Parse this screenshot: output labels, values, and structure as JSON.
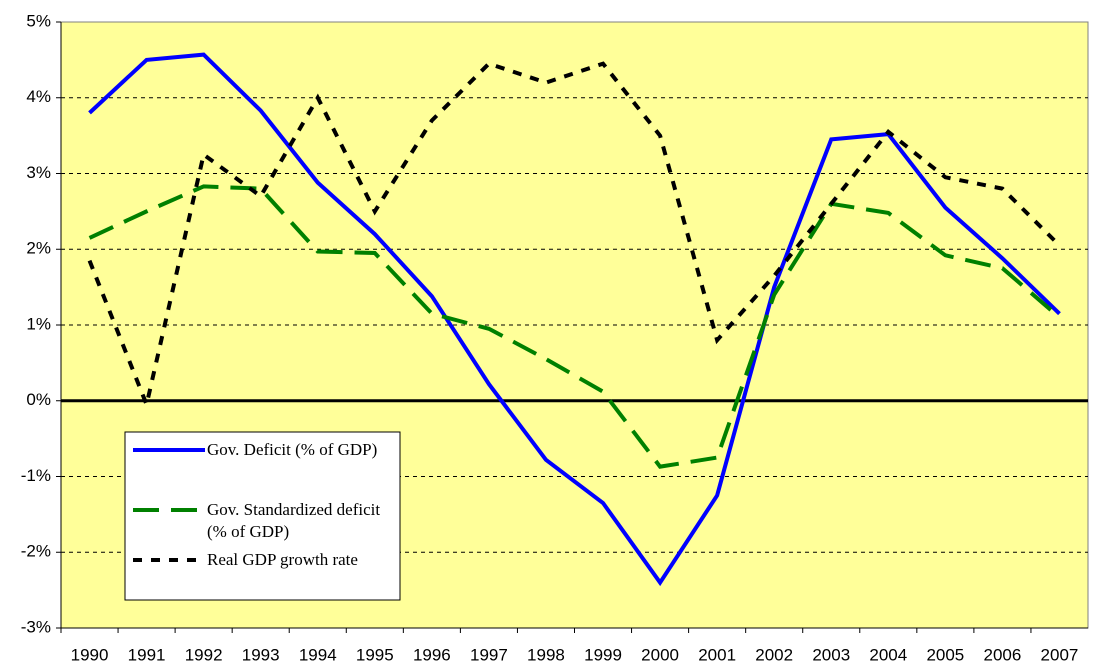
{
  "chart_data": {
    "type": "line",
    "categories": [
      "1990",
      "1991",
      "1992",
      "1993",
      "1994",
      "1995",
      "1996",
      "1997",
      "1998",
      "1999",
      "2000",
      "2001",
      "2002",
      "2003",
      "2004",
      "2005",
      "2006",
      "2007"
    ],
    "series": [
      {
        "name": "Gov. Deficit (% of GDP)",
        "color": "#0000ff",
        "dash": "solid",
        "values": [
          3.8,
          4.5,
          4.57,
          3.83,
          2.88,
          2.2,
          1.38,
          0.22,
          -0.78,
          -1.35,
          -2.4,
          -1.25,
          1.5,
          3.45,
          3.52,
          2.55,
          1.88,
          1.15
        ]
      },
      {
        "name": "Gov. Standardized deficit (% of GDP)",
        "color": "#008000",
        "dash": "long",
        "values": [
          2.15,
          2.5,
          2.83,
          2.8,
          1.97,
          1.95,
          1.15,
          0.95,
          0.55,
          0.12,
          -0.87,
          -0.75,
          1.4,
          2.6,
          2.48,
          1.92,
          1.75,
          1.1
        ]
      },
      {
        "name": "Real GDP growth rate",
        "color": "#000000",
        "dash": "short",
        "values": [
          1.85,
          -0.05,
          3.25,
          2.7,
          4.0,
          2.5,
          3.7,
          4.45,
          4.2,
          4.45,
          3.5,
          0.8,
          1.65,
          2.6,
          3.55,
          2.95,
          2.8,
          2.05
        ]
      }
    ],
    "ylim": [
      -3,
      5
    ],
    "yticks": [
      {
        "value": -3,
        "label": "-3%"
      },
      {
        "value": -2,
        "label": "-2%"
      },
      {
        "value": -1,
        "label": "-1%"
      },
      {
        "value": 0,
        "label": "0%"
      },
      {
        "value": 1,
        "label": "1%"
      },
      {
        "value": 2,
        "label": "2%"
      },
      {
        "value": 3,
        "label": "3%"
      },
      {
        "value": 4,
        "label": "4%"
      },
      {
        "value": 5,
        "label": "5%"
      }
    ],
    "grid": true,
    "legend": "lower-left",
    "plot_background": "#ffff99"
  }
}
